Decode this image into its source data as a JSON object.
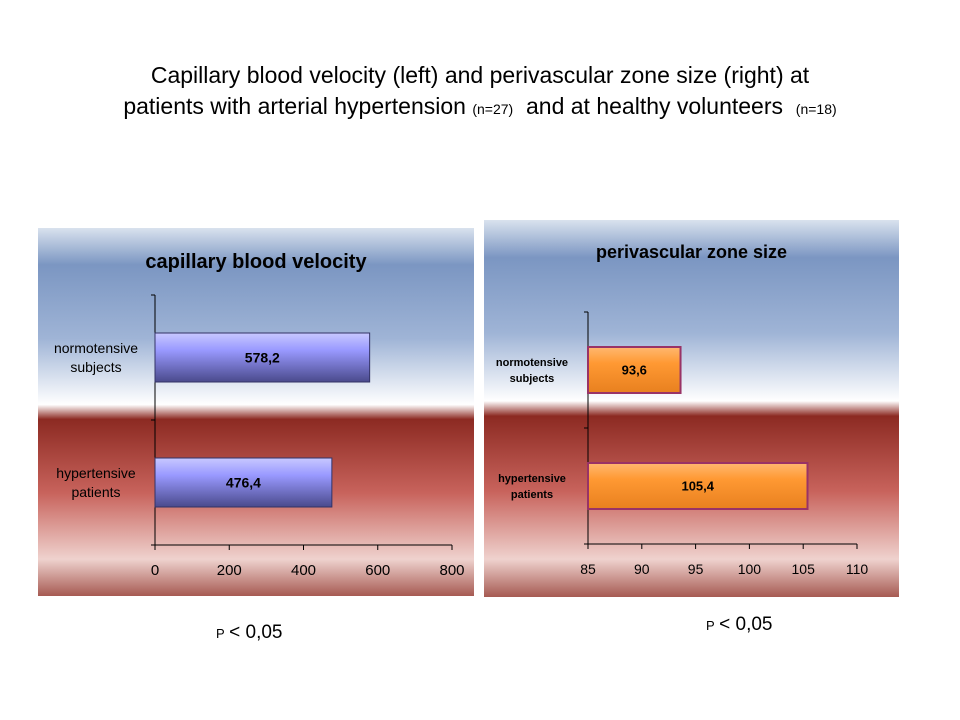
{
  "title": {
    "line1": "Capillary blood velocity (left) and perivascular zone size (right) at",
    "line2_a": "patients with arterial hypertension",
    "line2_n1": "(n=27)",
    "line2_b": "and at healthy volunteers",
    "line2_n2": "(n=18)"
  },
  "colors": {
    "bg_blue": "#7b96c2",
    "bg_white": "#ffffff",
    "bg_red": "#8c2a22",
    "bar_left": "#9999ff",
    "bar_right": "#ff9933",
    "bar_right_edge": "#993366"
  },
  "chart_data": [
    {
      "type": "bar",
      "orientation": "horizontal",
      "title": "capillary blood velocity",
      "categories": [
        "normotensive subjects",
        "hypertensive patients"
      ],
      "category_lines": [
        [
          "normotensive",
          "subjects"
        ],
        [
          "hypertensive",
          "patients"
        ]
      ],
      "values": [
        578.2,
        476.4
      ],
      "value_labels": [
        "578,2",
        "476,4"
      ],
      "xlim": [
        0,
        800
      ],
      "xticks": [
        0,
        200,
        400,
        600,
        800
      ],
      "xtick_labels": [
        "0",
        "200",
        "400",
        "600",
        "800"
      ],
      "xlabel": "",
      "ylabel": "",
      "grid": false,
      "p_value": {
        "p": "P",
        "rest": "< 0,05"
      }
    },
    {
      "type": "bar",
      "orientation": "horizontal",
      "title": "perivascular zone size",
      "categories": [
        "normotensive subjects",
        "hypertensive patients"
      ],
      "category_lines": [
        [
          "normotensive",
          "subjects"
        ],
        [
          "hypertensive",
          "patients"
        ]
      ],
      "values": [
        93.6,
        105.4
      ],
      "value_labels": [
        "93,6",
        "105,4"
      ],
      "xlim": [
        85,
        110
      ],
      "xticks": [
        85,
        90,
        95,
        100,
        105,
        110
      ],
      "xtick_labels": [
        "85",
        "90",
        "95",
        "100",
        "105",
        "110"
      ],
      "xlabel": "",
      "ylabel": "",
      "grid": false,
      "p_value": {
        "p": "P",
        "rest": "< 0,05"
      }
    }
  ]
}
